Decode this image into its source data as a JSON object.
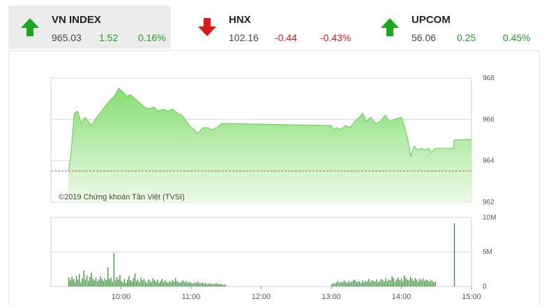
{
  "indices": [
    {
      "name": "VN INDEX",
      "value": "965.03",
      "change": "1.52",
      "percent": "0.16%",
      "direction": "up",
      "active": true
    },
    {
      "name": "HNX",
      "value": "102.16",
      "change": "-0.44",
      "percent": "-0.43%",
      "direction": "down",
      "active": false
    },
    {
      "name": "UPCOM",
      "value": "56.06",
      "change": "0.25",
      "percent": "0.45%",
      "direction": "up",
      "active": false
    }
  ],
  "colors": {
    "up": "#1aa81a",
    "down": "#e0161b",
    "area": "#8be07a",
    "reference": "#b5652a",
    "volume": "#2f8f2f"
  },
  "chart_data": {
    "type": "area",
    "title": "",
    "copyright": "©2019 Chứng khoán Tân Việt (TVSI)",
    "x_ticks": [
      "10:00",
      "11:00",
      "12:00",
      "13:00",
      "14:00",
      "15:00"
    ],
    "price": {
      "y_ticks": [
        "968",
        "966",
        "964",
        "962"
      ],
      "ylim": [
        962,
        968
      ],
      "reference": 963.51,
      "points": [
        [
          "09:15",
          963.5
        ],
        [
          "09:17",
          964.2
        ],
        [
          "09:20",
          966.3
        ],
        [
          "09:23",
          966.4
        ],
        [
          "09:26",
          965.8
        ],
        [
          "09:29",
          966.1
        ],
        [
          "09:32",
          965.9
        ],
        [
          "09:35",
          965.7
        ],
        [
          "09:38",
          966.0
        ],
        [
          "09:42",
          966.3
        ],
        [
          "09:46",
          966.6
        ],
        [
          "09:50",
          966.9
        ],
        [
          "09:54",
          967.1
        ],
        [
          "09:58",
          967.5
        ],
        [
          "10:02",
          967.3
        ],
        [
          "10:05",
          967.1
        ],
        [
          "10:08",
          967.2
        ],
        [
          "10:12",
          967.0
        ],
        [
          "10:16",
          966.8
        ],
        [
          "10:20",
          966.6
        ],
        [
          "10:24",
          966.5
        ],
        [
          "10:28",
          966.6
        ],
        [
          "10:32",
          966.4
        ],
        [
          "10:36",
          966.5
        ],
        [
          "10:40",
          966.4
        ],
        [
          "10:44",
          966.5
        ],
        [
          "10:48",
          966.3
        ],
        [
          "10:52",
          966.2
        ],
        [
          "10:56",
          965.9
        ],
        [
          "11:00",
          965.6
        ],
        [
          "11:03",
          965.5
        ],
        [
          "11:05",
          965.3
        ],
        [
          "11:07",
          965.4
        ],
        [
          "11:10",
          965.6
        ],
        [
          "11:14",
          965.6
        ],
        [
          "11:18",
          965.5
        ],
        [
          "11:22",
          965.6
        ],
        [
          "11:26",
          965.8
        ],
        [
          "11:30",
          965.8
        ],
        [
          "13:00",
          965.7
        ],
        [
          "13:02",
          965.5
        ],
        [
          "13:05",
          965.6
        ],
        [
          "13:08",
          965.5
        ],
        [
          "13:12",
          965.7
        ],
        [
          "13:16",
          965.6
        ],
        [
          "13:20",
          965.9
        ],
        [
          "13:24",
          966.1
        ],
        [
          "13:27",
          966.3
        ],
        [
          "13:30",
          965.9
        ],
        [
          "13:34",
          966.1
        ],
        [
          "13:38",
          965.8
        ],
        [
          "13:42",
          965.9
        ],
        [
          "13:46",
          966.2
        ],
        [
          "13:50",
          965.9
        ],
        [
          "13:54",
          966.0
        ],
        [
          "14:00",
          966.1
        ],
        [
          "14:03",
          965.6
        ],
        [
          "14:06",
          964.9
        ],
        [
          "14:08",
          964.2
        ],
        [
          "14:11",
          964.7
        ],
        [
          "14:14",
          964.5
        ],
        [
          "14:17",
          964.6
        ],
        [
          "14:20",
          964.5
        ],
        [
          "14:23",
          964.6
        ],
        [
          "14:26",
          964.4
        ],
        [
          "14:29",
          964.6
        ],
        [
          "14:31",
          964.6
        ],
        [
          "14:33",
          964.6
        ],
        [
          "14:45",
          964.6
        ],
        [
          "14:45",
          965.0
        ],
        [
          "15:00",
          965.03
        ]
      ]
    },
    "volume": {
      "y_ticks": [
        "10M",
        "5M",
        "0"
      ],
      "ylim": [
        0,
        10
      ],
      "unit": "M",
      "morning": [
        1.3,
        0.9,
        1.4,
        1.1,
        0.7,
        1.5,
        1.0,
        1.8,
        0.6,
        1.2,
        2.3,
        1.0,
        1.6,
        0.8,
        1.4,
        2.0,
        1.1,
        0.9,
        1.3,
        0.7,
        1.0,
        1.5,
        1.1,
        0.8,
        1.2,
        0.9,
        2.8,
        1.1,
        1.3,
        0.7,
        4.8,
        0.9,
        1.4,
        1.0,
        1.7,
        0.8,
        0.6,
        1.1,
        0.5,
        1.0,
        1.5,
        0.9,
        0.7,
        1.2,
        1.9,
        0.8,
        1.0,
        0.6,
        1.3,
        0.9,
        1.1,
        0.7,
        0.5,
        1.0,
        0.8,
        0.6,
        1.2,
        0.9,
        0.7,
        1.0,
        0.5,
        0.8,
        1.1,
        0.6,
        0.9,
        0.7,
        0.5,
        0.8,
        0.6,
        0.9,
        0.7,
        1.2,
        0.8,
        0.6,
        0.5,
        0.7,
        0.9,
        0.6,
        0.8,
        0.5,
        0.7,
        0.6,
        0.5,
        0.4,
        0.6,
        0.5,
        0.7,
        0.4,
        0.5,
        0.6,
        0.4,
        0.5,
        0.3,
        0.4,
        0.5,
        0.3,
        0.4,
        0.3,
        0.5,
        0.4,
        0.3,
        0.4,
        0.3,
        0.2,
        0.3
      ],
      "afternoon": [
        0.3,
        0.5,
        0.4,
        0.6,
        0.8,
        0.5,
        0.7,
        0.6,
        0.9,
        0.7,
        0.5,
        0.8,
        0.6,
        0.7,
        0.9,
        1.0,
        0.6,
        0.8,
        0.7,
        0.5,
        0.9,
        0.6,
        0.8,
        0.7,
        1.1,
        0.6,
        0.9,
        0.8,
        0.7,
        1.0,
        0.6,
        0.8,
        1.1,
        0.9,
        0.7,
        1.2,
        0.8,
        1.0,
        0.9,
        1.5,
        1.2,
        0.7,
        1.0,
        1.3,
        0.9,
        1.1,
        0.8,
        1.6,
        1.2,
        1.0,
        0.9,
        1.4,
        1.1,
        0.8,
        1.2,
        1.0,
        0.7,
        1.1,
        0.9,
        1.2,
        0.8,
        1.0,
        0.9,
        0.7,
        1.0,
        0.8,
        0.6,
        0.7
      ],
      "atc_time": "14:45",
      "atc": 9.2
    }
  }
}
